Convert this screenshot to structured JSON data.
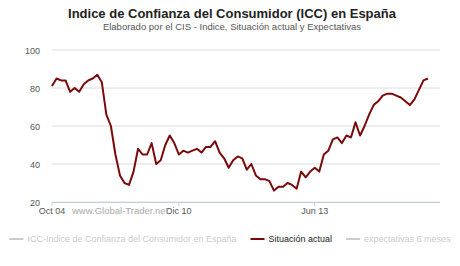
{
  "chart_data": {
    "type": "line",
    "title": "Indice de Confianza del Consumidor (ICC) en España",
    "subtitle": "Elaborado por el CIS - Indice, Situación actual y Expectativas",
    "annotations": [
      "www.Global-Trader.net"
    ],
    "categories": [
      "Oct 04",
      null,
      null,
      null,
      null,
      null,
      null,
      null,
      null,
      null,
      null,
      null,
      null,
      null,
      null,
      null,
      null,
      null,
      null,
      null,
      null,
      null,
      null,
      null,
      null,
      null,
      null,
      null,
      "Dic 10",
      null,
      null,
      null,
      null,
      null,
      null,
      null,
      null,
      null,
      null,
      null,
      null,
      null,
      null,
      null,
      null,
      null,
      null,
      null,
      null,
      null,
      null,
      null,
      null,
      null,
      null,
      null,
      null,
      null,
      "Jun 13",
      null,
      null,
      null,
      null,
      null,
      null,
      null,
      null,
      null,
      null,
      null,
      null,
      null,
      null,
      null,
      null,
      null,
      null,
      null,
      null,
      null,
      null,
      null,
      null,
      null
    ],
    "series": [
      {
        "name": "ICC-Indice de Confianza del Consumidor en España",
        "color": "#cccccc",
        "values": [
          null,
          null,
          null,
          null,
          null,
          null,
          null,
          null,
          null,
          null,
          null,
          null,
          null,
          null,
          null,
          null,
          null,
          null,
          null,
          null,
          null,
          null,
          null,
          null,
          null,
          null,
          null,
          null,
          null,
          null,
          null,
          null,
          null,
          null,
          null,
          null,
          null,
          null,
          null,
          null,
          null,
          null,
          null,
          null,
          null,
          null,
          null,
          null,
          null,
          null,
          null,
          null,
          null,
          null,
          null,
          null,
          null,
          null,
          null,
          null,
          null,
          null,
          null,
          null,
          null,
          null,
          null,
          null,
          null,
          null,
          null,
          null,
          null,
          null,
          null,
          null,
          null,
          null,
          null,
          null,
          null,
          null,
          null,
          null
        ]
      },
      {
        "name": "Situación actual",
        "color": "#7a0a0a",
        "values": [
          81,
          85,
          84,
          84,
          78,
          80,
          78,
          82,
          84,
          85,
          87,
          83,
          66,
          60,
          45,
          34,
          30,
          29,
          36,
          48,
          45,
          45,
          51,
          40,
          42,
          50,
          55,
          51,
          45,
          47,
          46,
          47,
          48,
          46,
          49,
          49,
          52,
          46,
          43,
          38,
          42,
          44,
          43,
          37,
          40,
          34,
          32,
          32,
          31,
          26,
          28,
          28,
          30,
          29,
          27,
          36,
          33,
          36,
          38,
          36,
          45,
          47,
          53,
          54,
          51,
          55,
          54,
          62,
          55,
          60,
          66,
          71,
          73,
          76,
          77,
          77,
          76,
          75,
          73,
          71,
          74,
          79,
          84,
          85
        ]
      },
      {
        "name": "expectativas 6 meses",
        "color": "#cccccc",
        "values": [
          null,
          null,
          null,
          null,
          null,
          null,
          null,
          null,
          null,
          null,
          null,
          null,
          null,
          null,
          null,
          null,
          null,
          null,
          null,
          null,
          null,
          null,
          null,
          null,
          null,
          null,
          null,
          null,
          null,
          null,
          null,
          null,
          null,
          null,
          null,
          null,
          null,
          null,
          null,
          null,
          null,
          null,
          null,
          null,
          null,
          null,
          null,
          null,
          null,
          null,
          null,
          null,
          null,
          null,
          null,
          null,
          null,
          null,
          null,
          null,
          null,
          null,
          null,
          null,
          null,
          null,
          null,
          null,
          null,
          null,
          null,
          null,
          null,
          null,
          null,
          null,
          null,
          null,
          null,
          null,
          null,
          null,
          null,
          null
        ]
      }
    ],
    "ylim": [
      20,
      100
    ],
    "yticks": [
      20,
      40,
      60,
      80,
      100
    ],
    "grid": true,
    "legend": "bottom"
  }
}
